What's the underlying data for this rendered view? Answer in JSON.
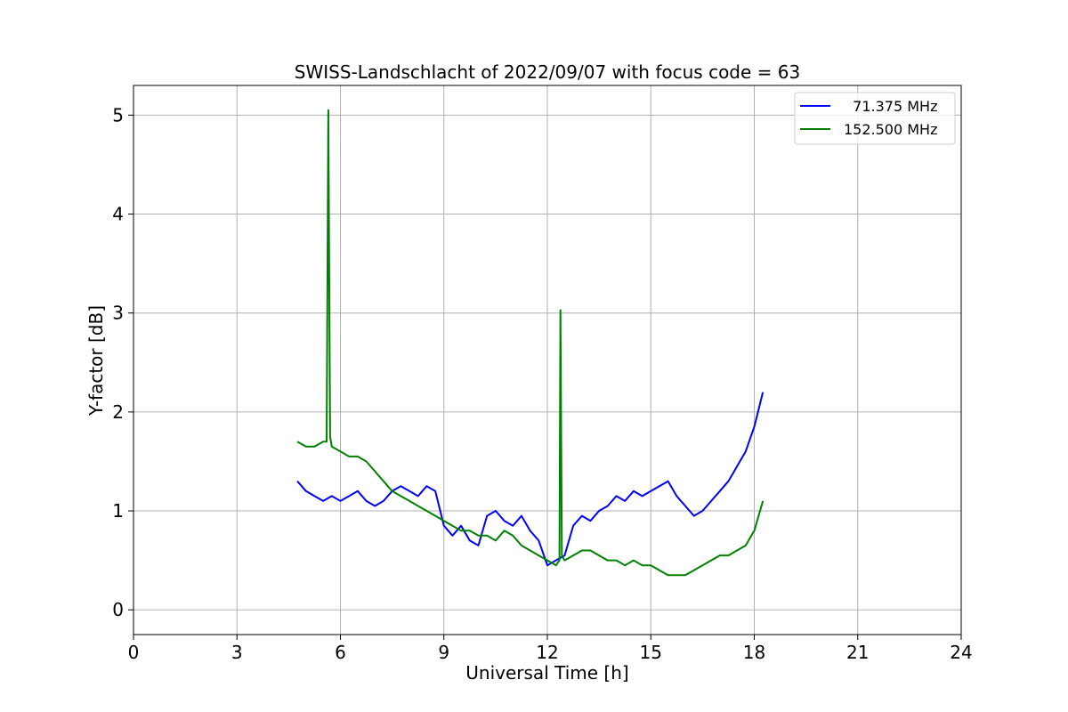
{
  "chart_data": {
    "type": "line",
    "title": "SWISS-Landschlacht of 2022/09/07 with focus code = 63",
    "xlabel": "Universal Time [h]",
    "ylabel": "Y-factor [dB]",
    "xlim": [
      0,
      24
    ],
    "ylim": [
      -0.25,
      5.3
    ],
    "xticks": [
      0,
      3,
      6,
      9,
      12,
      15,
      18,
      21,
      24
    ],
    "yticks": [
      0,
      1,
      2,
      3,
      4,
      5
    ],
    "grid": true,
    "legend_position": "top-right",
    "series": [
      {
        "name": "  71.375 MHz",
        "color": "#0000ff",
        "x": [
          4.75,
          5.0,
          5.25,
          5.5,
          5.75,
          6.0,
          6.25,
          6.5,
          6.75,
          7.0,
          7.25,
          7.5,
          7.75,
          8.0,
          8.25,
          8.5,
          8.75,
          9.0,
          9.25,
          9.5,
          9.75,
          10.0,
          10.25,
          10.5,
          10.75,
          11.0,
          11.25,
          11.5,
          11.75,
          12.0,
          12.25,
          12.5,
          12.75,
          13.0,
          13.25,
          13.5,
          13.75,
          14.0,
          14.25,
          14.5,
          14.75,
          15.0,
          15.25,
          15.5,
          15.75,
          16.0,
          16.25,
          16.5,
          16.75,
          17.0,
          17.25,
          17.5,
          17.75,
          18.0,
          18.25
        ],
        "y": [
          1.3,
          1.2,
          1.15,
          1.1,
          1.15,
          1.1,
          1.15,
          1.2,
          1.1,
          1.05,
          1.1,
          1.2,
          1.25,
          1.2,
          1.15,
          1.25,
          1.2,
          0.85,
          0.75,
          0.85,
          0.7,
          0.65,
          0.95,
          1.0,
          0.9,
          0.85,
          0.95,
          0.8,
          0.7,
          0.45,
          0.5,
          0.55,
          0.85,
          0.95,
          0.9,
          1.0,
          1.05,
          1.15,
          1.1,
          1.2,
          1.15,
          1.2,
          1.25,
          1.3,
          1.15,
          1.05,
          0.95,
          1.0,
          1.1,
          1.2,
          1.3,
          1.45,
          1.6,
          1.85,
          2.2
        ]
      },
      {
        "name": "152.500 MHz",
        "color": "#008000",
        "x": [
          4.75,
          5.0,
          5.25,
          5.5,
          5.6,
          5.65,
          5.7,
          5.75,
          6.0,
          6.25,
          6.5,
          6.75,
          7.0,
          7.25,
          7.5,
          7.75,
          8.0,
          8.25,
          8.5,
          8.75,
          9.0,
          9.25,
          9.5,
          9.75,
          10.0,
          10.25,
          10.5,
          10.75,
          11.0,
          11.25,
          11.5,
          11.75,
          12.0,
          12.25,
          12.35,
          12.38,
          12.42,
          12.5,
          12.75,
          13.0,
          13.25,
          13.5,
          13.75,
          14.0,
          14.25,
          14.5,
          14.75,
          15.0,
          15.25,
          15.5,
          15.75,
          16.0,
          16.25,
          16.5,
          16.75,
          17.0,
          17.25,
          17.5,
          17.75,
          18.0,
          18.25
        ],
        "y": [
          1.7,
          1.65,
          1.65,
          1.7,
          1.7,
          5.05,
          1.75,
          1.65,
          1.6,
          1.55,
          1.55,
          1.5,
          1.4,
          1.3,
          1.2,
          1.15,
          1.1,
          1.05,
          1.0,
          0.95,
          0.9,
          0.85,
          0.8,
          0.8,
          0.75,
          0.75,
          0.7,
          0.8,
          0.75,
          0.65,
          0.6,
          0.55,
          0.5,
          0.45,
          0.5,
          3.03,
          0.55,
          0.5,
          0.55,
          0.6,
          0.6,
          0.55,
          0.5,
          0.5,
          0.45,
          0.5,
          0.45,
          0.45,
          0.4,
          0.35,
          0.35,
          0.35,
          0.4,
          0.45,
          0.5,
          0.55,
          0.55,
          0.6,
          0.65,
          0.8,
          1.1
        ]
      }
    ]
  }
}
